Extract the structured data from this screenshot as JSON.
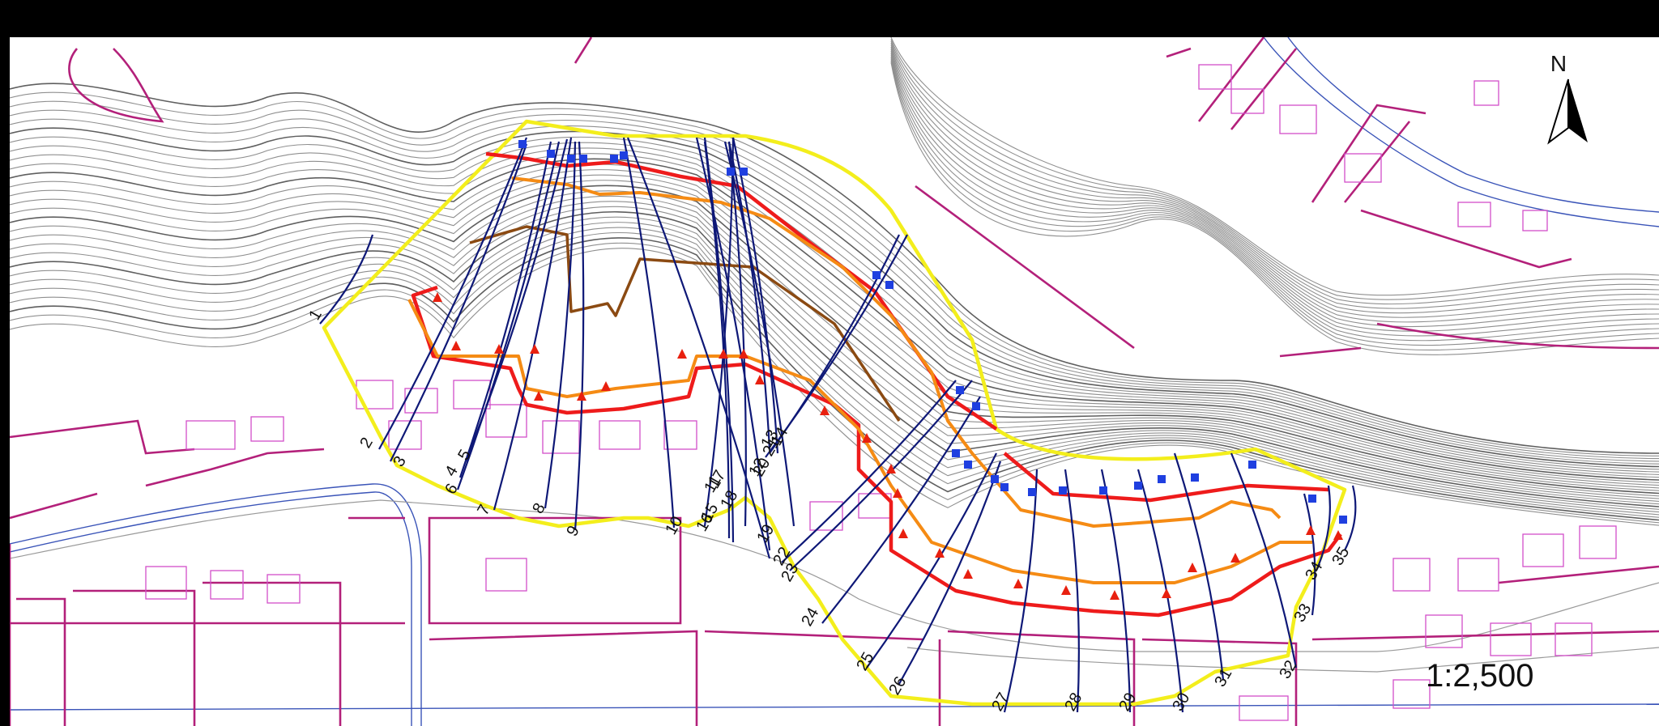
{
  "map": {
    "scale_label": "1:2,500",
    "north_label": "N"
  },
  "colors": {
    "frame": "#000000",
    "contour": "#8f8f8f",
    "parcel": "#b3207a",
    "building": "#d24fc9",
    "zone_boundary": "#f3ee1c",
    "red_line": "#ee1b1b",
    "orange_line": "#f58b14",
    "brown_line": "#8b4a12",
    "section_line": "#0e1877",
    "top_marker": "#1f3fe0",
    "toe_marker": "#e8200f"
  },
  "sections": [
    "1",
    "2",
    "3",
    "4",
    "5",
    "6",
    "7",
    "8",
    "9",
    "10",
    "11",
    "12",
    "13",
    "14",
    "15",
    "16",
    "17",
    "18",
    "19",
    "20",
    "21",
    "22",
    "23",
    "24",
    "25",
    "26",
    "27",
    "28",
    "29",
    "30",
    "31",
    "32",
    "33",
    "34",
    "35"
  ]
}
